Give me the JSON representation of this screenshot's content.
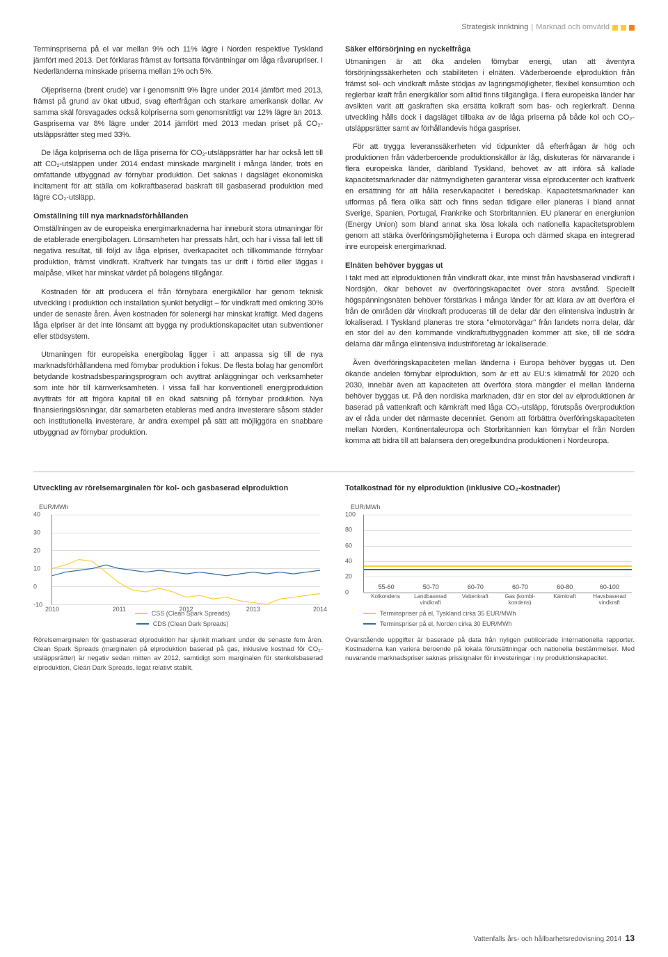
{
  "header": {
    "section": "Strategisk inriktning",
    "subsection": "Marknad och omvärld",
    "sq_colors": [
      "#ffcc33",
      "#ffcc33",
      "#f58220"
    ]
  },
  "left": {
    "p1": "Terminspriserna på el var mellan 9% och 11% lägre i Norden respektive Tyskland jämfört med 2013. Det förklaras främst av fortsatta förväntningar om låga råvarupriser. I Nederländerna minskade priserna mellan 1% och 5%.",
    "p2": "Oljepriserna (brent crude) var i genomsnitt 9% lägre under 2014 jämfört med 2013, främst på grund av ökat utbud, svag efterfrågan och starkare amerikansk dollar. Av samma skäl försvagades också kolpriserna som genomsnittligt var 12% lägre än 2013. Gaspriserna var 8% lägre under 2014 jämfört med 2013 medan priset på CO₂-utsläppsrätter steg med 33%.",
    "p3": "De låga kolpriserna och de låga priserna för CO₂-utsläppsrätter har har också lett till att CO₂-utsläppen under 2014 endast minskade marginellt i många länder, trots en omfattande utbyggnad av förnybar produktion. Det saknas i dagsläget ekonomiska incitament för att ställa om kolkraftbaserad baskraft till gasbaserad produktion med lägre CO₂-utsläpp.",
    "h1": "Omställning till nya marknadsförhållanden",
    "p4": "Omställningen av de europeiska energimarknaderna har inneburit stora utmaningar för de etablerade energibolagen. Lönsamheten har pressats hårt, och har i vissa fall lett till negativa resultat, till följd av låga elpriser, överkapacitet och tillkommande förnybar produktion, främst vindkraft. Kraftverk har tvingats tas ur drift i förtid eller läggas i malpåse, vilket har minskat värdet på bolagens tillgångar.",
    "p5": "Kostnaden för att producera el från förnybara energikällor har genom teknisk utveckling i produktion och installation sjunkit betydligt – för vindkraft med omkring 30% under de senaste åren. Även kostnaden för solenergi har minskat kraftigt. Med dagens låga elpriser är det inte lönsamt att bygga ny produktionskapacitet utan subventioner eller stödsystem.",
    "p6": "Utmaningen för europeiska energibolag ligger i att anpassa sig till de nya marknadsförhållandena med förnybar produktion i fokus. De flesta bolag har genomfört betydande kostnadsbesparingsprogram och avyttrat anläggningar och verksamheter som inte hör till kärnverksamheten. I vissa fall har konventionell energiproduktion avyttrats för att frigöra kapital till en ökad satsning på förnybar produktion. Nya finansieringslösningar, där samarbeten etableras med andra investerare såsom städer och institutionella investerare, är andra exempel på sätt att möjliggöra en snabbare utbyggnad av förnybar produktion."
  },
  "right": {
    "h1": "Säker elförsörjning en nyckelfråga",
    "p1": "Utmaningen är att öka andelen förnybar energi, utan att äventyra försörjningssäkerheten och stabiliteten i elnäten. Väderberoende elproduktion från främst sol- och vindkraft måste stödjas av lagringsmöjligheter, flexibel konsumtion och reglerbar kraft från energikällor som alltid finns tillgängliga. I flera europeiska länder har avsikten varit att gaskraften ska ersätta kolkraft som bas- och reglerkraft. Denna utveckling hålls dock i dagsläget tillbaka av de låga priserna på både kol och CO₂-utsläppsrätter samt av förhållandevis höga gaspriser.",
    "p2": "För att trygga leveranssäkerheten vid tidpunkter då efterfrågan är hög och produktionen från väderberoende produktionskällor är låg, diskuteras för närvarande i flera europeiska länder, däribland Tyskland, behovet av att införa så kallade kapacitetsmarknader där nätmyndigheten garanterar vissa elproducenter och kraftverk en ersättning för att hålla reservkapacitet i beredskap. Kapacitetsmarknader kan utformas på flera olika sätt och finns sedan tidigare eller planeras i bland annat Sverige, Spanien, Portugal, Frankrike och Storbritannien. EU planerar en energiunion (Energy Union) som bland annat ska lösa lokala och nationella kapacitetsproblem genom att stärka överföringsmöjligheterna i Europa och därmed skapa en integrerad inre europeisk energimarknad.",
    "h2": "Elnäten behöver byggas ut",
    "p3": "I takt med att elproduktionen från vindkraft ökar, inte minst från havsbaserad vindkraft i Nordsjön, ökar behovet av överföringskapacitet över stora avstånd. Speciellt högspänningsnäten behöver förstärkas i många länder för att klara av att överföra el från de områden där vindkraft produceras till de delar där den elintensiva industrin är lokaliserad. I Tyskland planeras tre stora \"elmotorvägar\" från landets norra delar, där en stor del av den kommande vindkraftutbyggnaden kommer att ske, till de södra delarna där många elintensiva industriföretag är lokaliserade.",
    "p4": "Även överföringskapaciteten mellan länderna i Europa behöver byggas ut. Den ökande andelen förnybar elproduktion, som är ett av EU:s klimatmål för 2020 och 2030, innebär även att kapaciteten att överföra stora mängder el mellan länderna behöver byggas ut. På den nordiska marknaden, där en stor del av elproduktionen är baserad på vattenkraft och kärnkraft med låga CO₂-utsläpp, förutspås överproduktion av el råda under det närmaste decenniet. Genom att förbättra överföringskapaciteten mellan Norden, Kontinentaleuropa och Storbritannien kan förnybar el från Norden komma att bidra till att balansera den oregelbundna produktionen i Nordeuropa."
  },
  "chart1": {
    "title": "Utveckling av rörelsemarginalen för kol- och gasbaserad elproduktion",
    "unit": "EUR/MWh",
    "ylim": [
      -10,
      40
    ],
    "yticks": [
      -10,
      0,
      10,
      20,
      30,
      40
    ],
    "xlabels": [
      "2010",
      "2011",
      "2012",
      "2013",
      "2014"
    ],
    "colors": {
      "css": "#ffcc33",
      "cds": "#2b6ca3"
    },
    "background": "#ffffff",
    "grid_color": "#ddd",
    "legend": [
      {
        "label": "CSS (Clean Spark Spreads)",
        "color": "#ffcc33"
      },
      {
        "label": "CDS (Clean Dark Spreads)",
        "color": "#2b6ca3"
      }
    ],
    "css_points": [
      [
        0,
        10
      ],
      [
        5,
        12
      ],
      [
        10,
        15
      ],
      [
        15,
        14
      ],
      [
        20,
        8
      ],
      [
        25,
        2
      ],
      [
        30,
        -2
      ],
      [
        35,
        -3
      ],
      [
        40,
        -1
      ],
      [
        45,
        -3
      ],
      [
        50,
        -6
      ],
      [
        55,
        -5
      ],
      [
        60,
        -7
      ],
      [
        65,
        -6
      ],
      [
        70,
        -8
      ],
      [
        75,
        -9
      ],
      [
        80,
        -10
      ],
      [
        85,
        -7
      ],
      [
        90,
        -6
      ],
      [
        95,
        -5
      ],
      [
        100,
        -4
      ]
    ],
    "cds_points": [
      [
        0,
        6
      ],
      [
        5,
        8
      ],
      [
        10,
        9
      ],
      [
        15,
        10
      ],
      [
        20,
        12
      ],
      [
        25,
        10
      ],
      [
        30,
        9
      ],
      [
        35,
        8
      ],
      [
        40,
        9
      ],
      [
        45,
        8
      ],
      [
        50,
        7
      ],
      [
        55,
        8
      ],
      [
        60,
        7
      ],
      [
        65,
        6
      ],
      [
        70,
        7
      ],
      [
        75,
        8
      ],
      [
        80,
        7
      ],
      [
        85,
        8
      ],
      [
        90,
        7
      ],
      [
        95,
        8
      ],
      [
        100,
        9
      ]
    ],
    "caption": "Rörelsemarginalen för gasbaserad elproduktion har sjunkit markant under de senaste fem åren. Clean Spark Spreads (marginalen på elproduktion baserad på gas, inklusive kostnad för CO₂-utsläppsrätter) är negativ sedan mitten av 2012, samtidigt som marginalen för stenkolsbaserad elproduktion, Clean Dark Spreads, legat relativt stabilt."
  },
  "chart2": {
    "title": "Totalkostnad för ny elproduktion (inklusive CO₂-kostnader)",
    "unit": "EUR/MWh",
    "ylim": [
      0,
      100
    ],
    "yticks": [
      0,
      20,
      40,
      60,
      80,
      100
    ],
    "grid_color": "#ddd",
    "bar_color_top": "#c9dbe8",
    "bar_color_bot": "#2b6ca3",
    "ref_lines": [
      {
        "value": 35,
        "color": "#ffcc33",
        "label": "Terminspriser på el, Tyskland cirka 35 EUR/MWh"
      },
      {
        "value": 30,
        "color": "#2b6ca3",
        "label": "Terminspriser på el, Norden cirka 30 EUR/MWh"
      }
    ],
    "bars": [
      {
        "cat": "Kolkondens",
        "label": "55-60",
        "low": 55,
        "high": 60
      },
      {
        "cat": "Landbaserad vindkraft",
        "label": "50-70",
        "low": 50,
        "high": 70
      },
      {
        "cat": "Vattenkraft",
        "label": "60-70",
        "low": 60,
        "high": 70
      },
      {
        "cat": "Gas (kombi-kondens)",
        "label": "60-70",
        "low": 60,
        "high": 70
      },
      {
        "cat": "Kärnkraft",
        "label": "60-80",
        "low": 60,
        "high": 80
      },
      {
        "cat": "Havsbaserad vindkraft",
        "label": "60-100",
        "low": 60,
        "high": 100
      }
    ],
    "caption": "Ovanstående uppgifter är baserade på data från nyligen publicerade internationella rapporter. Kostnaderna kan variera beroende på lokala förutsättningar och nationella bestämmelser. Med nuvarande marknadspriser saknas prissignaler för investeringar i ny produktionskapacitet."
  },
  "footer": {
    "text": "Vattenfalls års- och hållbarhetsredovisning 2014",
    "page": "13"
  }
}
